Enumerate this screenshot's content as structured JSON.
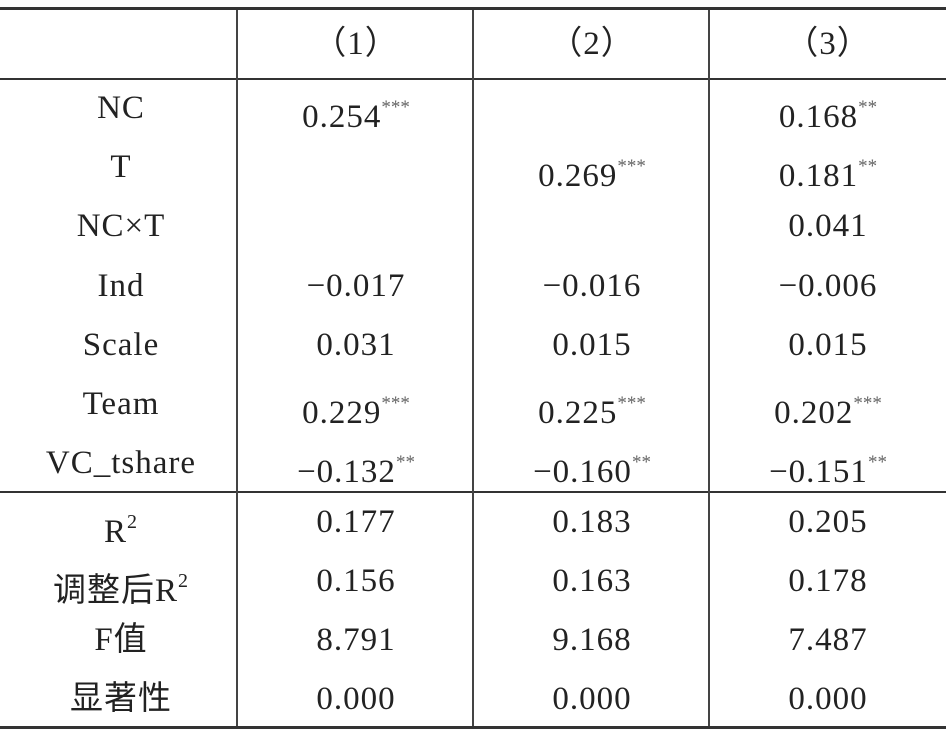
{
  "table": {
    "header": [
      "（1）",
      "（2）",
      "（3）"
    ],
    "rows": [
      {
        "label": "NC",
        "cells": [
          {
            "value": "0.254",
            "stars": "***"
          },
          null,
          {
            "value": "0.168",
            "stars": "**"
          }
        ]
      },
      {
        "label": "T",
        "cells": [
          null,
          {
            "value": "0.269",
            "stars": "***"
          },
          {
            "value": "0.181",
            "stars": "**"
          }
        ]
      },
      {
        "label": "NC×T",
        "cells": [
          null,
          null,
          {
            "value": "0.041"
          }
        ]
      },
      {
        "label": "Ind",
        "cells": [
          {
            "value": "−0.017"
          },
          {
            "value": "−0.016"
          },
          {
            "value": "−0.006"
          }
        ]
      },
      {
        "label": "Scale",
        "cells": [
          {
            "value": "0.031"
          },
          {
            "value": "0.015"
          },
          {
            "value": "0.015"
          }
        ]
      },
      {
        "label": "Team",
        "cells": [
          {
            "value": "0.229",
            "stars": "***"
          },
          {
            "value": "0.225",
            "stars": "***"
          },
          {
            "value": "0.202",
            "stars": "***"
          }
        ]
      },
      {
        "label": "VC_tshare",
        "cells": [
          {
            "value": "−0.132",
            "stars": "**"
          },
          {
            "value": "−0.160",
            "stars": "**"
          },
          {
            "value": "−0.151",
            "stars": "**"
          }
        ]
      }
    ],
    "stats": [
      {
        "label": "R",
        "sup": "2",
        "cells": [
          {
            "value": "0.177"
          },
          {
            "value": "0.183"
          },
          {
            "value": "0.205"
          }
        ]
      },
      {
        "label": "调整后R",
        "sup": "2",
        "cells": [
          {
            "value": "0.156"
          },
          {
            "value": "0.163"
          },
          {
            "value": "0.178"
          }
        ]
      },
      {
        "label": "F值",
        "cells": [
          {
            "value": "8.791"
          },
          {
            "value": "9.168"
          },
          {
            "value": "7.487"
          }
        ]
      },
      {
        "label": "显著性",
        "cells": [
          {
            "value": "0.000"
          },
          {
            "value": "0.000"
          },
          {
            "value": "0.000"
          }
        ]
      }
    ]
  }
}
